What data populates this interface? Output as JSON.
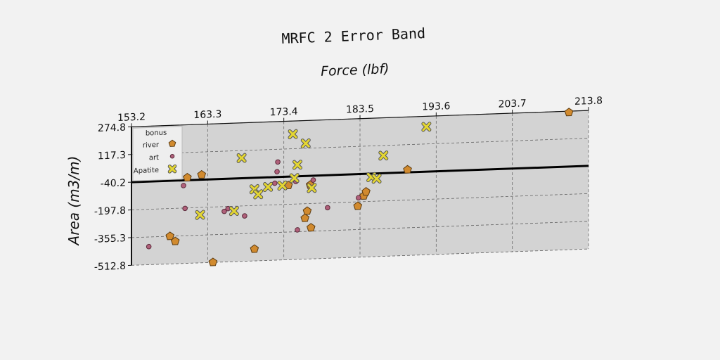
{
  "chart_data": {
    "type": "scatter",
    "title": "MRFC 2 Error Band",
    "xlabel": "Force (lbf)",
    "ylabel": "Area (m3/m)",
    "xlim": [
      153.2,
      213.8
    ],
    "ylim": [
      -512.8,
      274.8
    ],
    "xticks": [
      "153.2",
      "163.3",
      "173.4",
      "183.5",
      "193.6",
      "203.7",
      "213.8"
    ],
    "yticks": [
      "274.8",
      "117.3",
      "-40.2",
      "-197.8",
      "-355.3",
      "-512.8"
    ],
    "x_axis_position": "top",
    "grid": true,
    "legend": {
      "title": "bonus",
      "position": "top-left"
    },
    "reference_line": {
      "type": "horizontal",
      "y": -40.2
    },
    "series": [
      {
        "name": "river",
        "marker": "pentagon",
        "color": "#d18a2e",
        "points": [
          [
            160.6,
            -25
          ],
          [
            162.5,
            -12
          ],
          [
            158.3,
            -355
          ],
          [
            159.0,
            -385
          ],
          [
            164.0,
            -512
          ],
          [
            169.5,
            -445
          ],
          [
            174.0,
            -90
          ],
          [
            176.5,
            -240
          ],
          [
            176.2,
            -280
          ],
          [
            177.0,
            -335
          ],
          [
            176.9,
            -92
          ],
          [
            183.2,
            -222
          ],
          [
            184.0,
            -165
          ],
          [
            184.3,
            -142
          ],
          [
            189.8,
            -25
          ],
          [
            211.2,
            268
          ]
        ]
      },
      {
        "name": "art",
        "marker": "circle",
        "color": "#b0607a",
        "points": [
          [
            155.5,
            -410
          ],
          [
            160.1,
            -70
          ],
          [
            160.3,
            -200
          ],
          [
            165.5,
            -225
          ],
          [
            166.0,
            -210
          ],
          [
            168.2,
            -255
          ],
          [
            172.2,
            -75
          ],
          [
            172.5,
            -10
          ],
          [
            172.6,
            45
          ],
          [
            175.0,
            -70
          ],
          [
            175.2,
            -345
          ],
          [
            177.3,
            -65
          ],
          [
            179.2,
            -225
          ],
          [
            183.3,
            -175
          ]
        ]
      },
      {
        "name": "Apatite",
        "marker": "x",
        "color": "#e4d633",
        "points": [
          [
            162.3,
            -240
          ],
          [
            166.8,
            -225
          ],
          [
            167.8,
            75
          ],
          [
            169.5,
            -105
          ],
          [
            170.0,
            -135
          ],
          [
            171.3,
            -95
          ],
          [
            173.2,
            -90
          ],
          [
            174.6,
            200
          ],
          [
            174.8,
            -50
          ],
          [
            175.2,
            25
          ],
          [
            176.3,
            145
          ],
          [
            177.1,
            -110
          ],
          [
            185.0,
            -60
          ],
          [
            185.7,
            -70
          ],
          [
            186.6,
            60
          ],
          [
            192.3,
            215
          ]
        ]
      }
    ]
  }
}
